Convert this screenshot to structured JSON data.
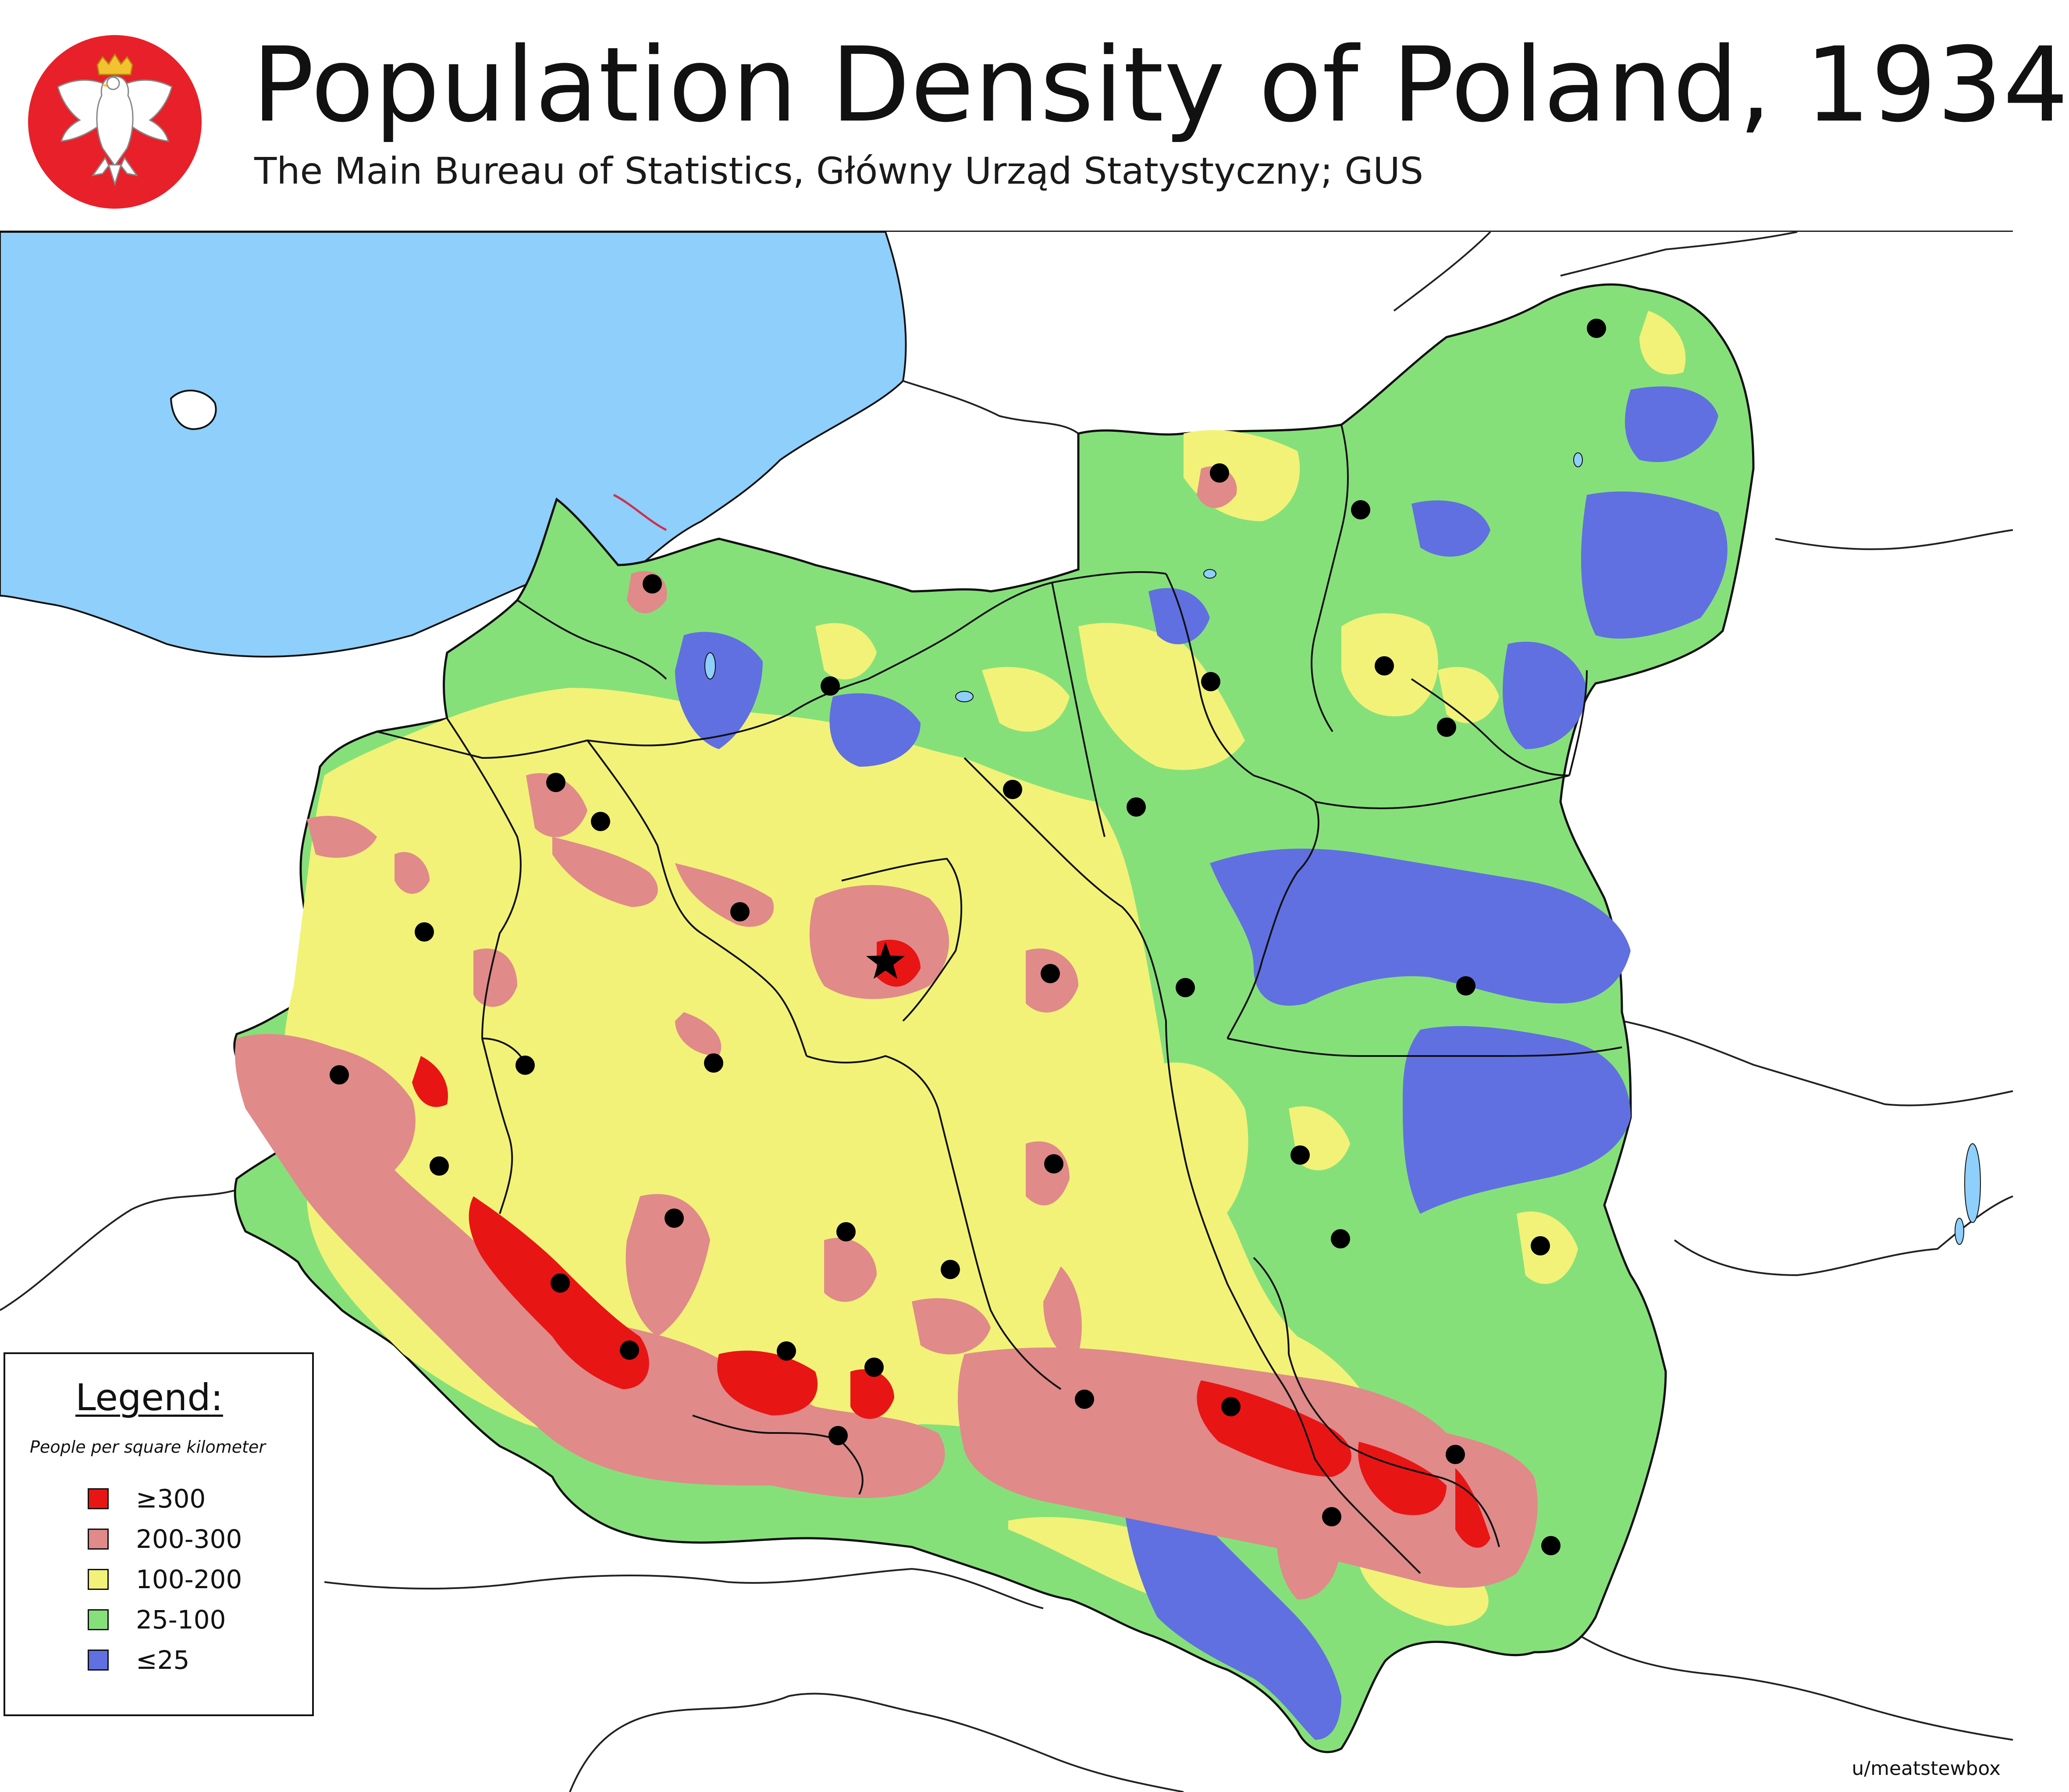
{
  "header": {
    "title": "Population Density of Poland, 1934",
    "subtitle": "The Main Bureau of Statistics, Główny Urząd Statystyczny; GUS"
  },
  "legend": {
    "title": "Legend:",
    "subtitle": "People per square kilometer",
    "items": [
      {
        "label": "≥300",
        "color": "#e81515"
      },
      {
        "label": "200-300",
        "color": "#e08a8a"
      },
      {
        "label": "100-200",
        "color": "#f2f278"
      },
      {
        "label": "25-100",
        "color": "#86e07a"
      },
      {
        "label": "≤25",
        "color": "#6070e0"
      }
    ]
  },
  "credit": "u/meatstewbox",
  "colors": {
    "sea": "#8ecffc",
    "background": "#ffffff",
    "emblem_red": "#e8202a",
    "city_dot": "#000000"
  },
  "icons": {
    "emblem": "polish-white-eagle-emblem",
    "city": "city-dot",
    "capital": "capital-star"
  }
}
